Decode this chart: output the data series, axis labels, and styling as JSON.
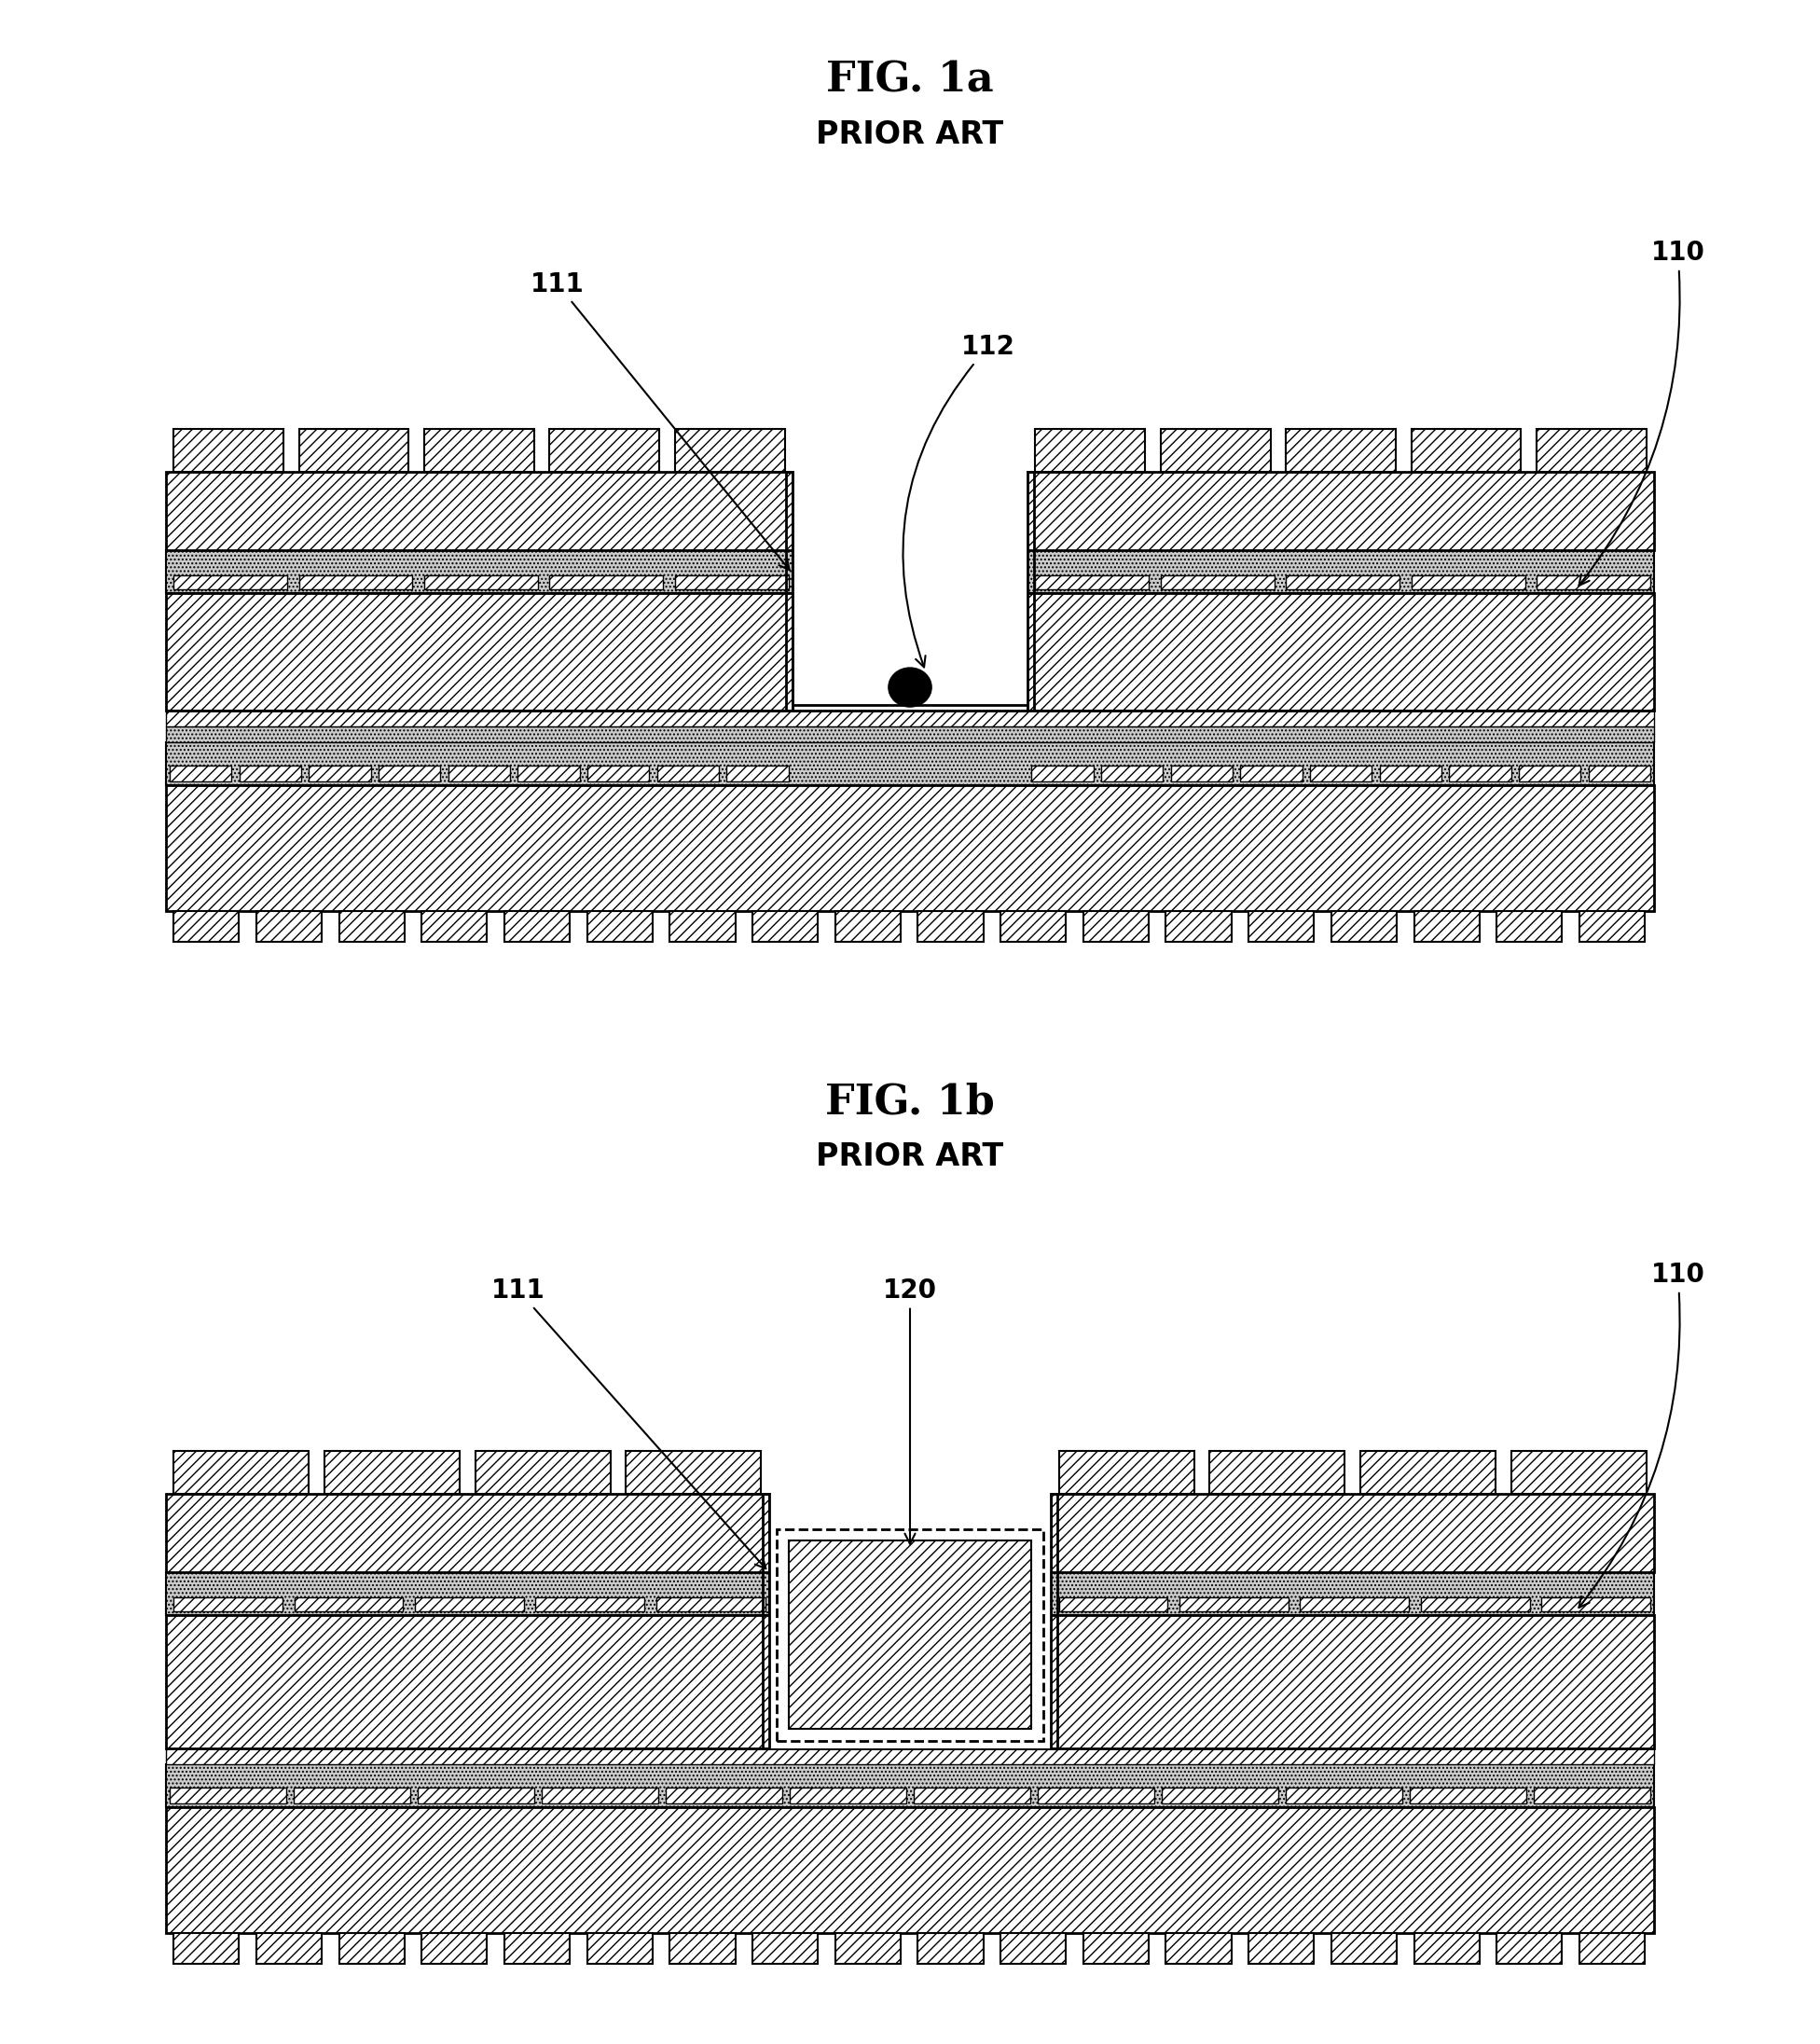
{
  "fig_title_1": "FIG. 1a",
  "fig_subtitle_1": "PRIOR ART",
  "fig_title_2": "FIG. 1b",
  "fig_subtitle_2": "PRIOR ART",
  "label_110_1": "110",
  "label_111_1": "111",
  "label_112_1": "112",
  "label_110_2": "110",
  "label_111_2": "111",
  "label_120_2": "120",
  "bg_color": "#ffffff",
  "title_fontsize": 32,
  "subtitle_fontsize": 24,
  "label_fontsize": 20
}
